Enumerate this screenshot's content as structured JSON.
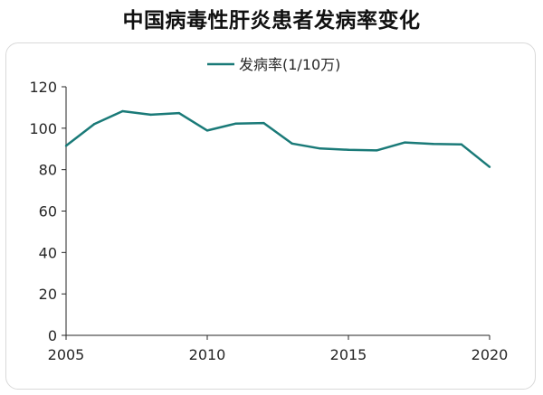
{
  "chart_data": {
    "type": "line",
    "title": "中国病毒性肝炎患者发病率变化",
    "xlabel": "",
    "ylabel": "",
    "x": [
      2005,
      2006,
      2007,
      2008,
      2009,
      2010,
      2011,
      2012,
      2013,
      2014,
      2015,
      2016,
      2017,
      2018,
      2019,
      2020
    ],
    "series": [
      {
        "name": "发病率(1/10万)",
        "values": [
          91.5,
          102,
          108.2,
          106.5,
          107.3,
          98.9,
          102.2,
          102.5,
          92.6,
          90.2,
          89.6,
          89.3,
          93.1,
          92.4,
          92.2,
          81.3
        ]
      }
    ],
    "xlim": [
      2005,
      2020
    ],
    "ylim": [
      0,
      120
    ],
    "xticks": [
      "2005",
      "2010",
      "2015",
      "2020"
    ],
    "yticks": [
      "0",
      "20",
      "40",
      "60",
      "80",
      "100",
      "120"
    ],
    "grid": false,
    "legend": "top-center",
    "colors": {
      "line": "#1a7a78",
      "axis": "#262626"
    }
  }
}
